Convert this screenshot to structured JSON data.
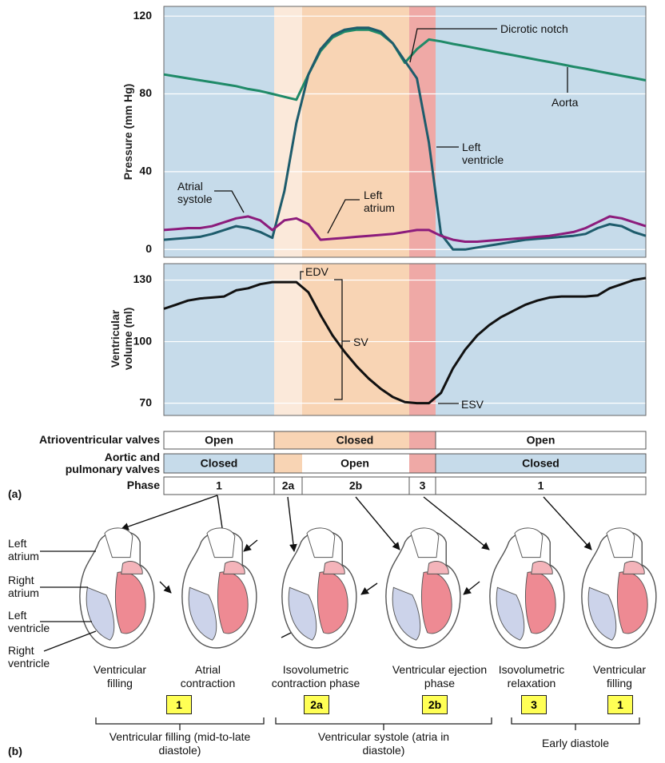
{
  "chart_data": [
    {
      "type": "line",
      "ylabel": "Pressure (mm Hg)",
      "categories": [
        null,
        null,
        null,
        null,
        null,
        null,
        null,
        null,
        null,
        null,
        null,
        null,
        null,
        null,
        null,
        null,
        null,
        null,
        null,
        null,
        null,
        null,
        null,
        null,
        null,
        null,
        null,
        null,
        null,
        null,
        null,
        null,
        null,
        null,
        null,
        null,
        null,
        null,
        null,
        null,
        null
      ],
      "series": [
        {
          "name": "Aorta",
          "color": "#1f8a68",
          "values": [
            90,
            89,
            88,
            87,
            86,
            85,
            84,
            82.5,
            81.5,
            80,
            78.5,
            77,
            90,
            102,
            109,
            112,
            113,
            113,
            111,
            106,
            96,
            103,
            108,
            107,
            105.7,
            104.6,
            103.4,
            102.2,
            101,
            99.9,
            98.7,
            97.5,
            96.4,
            95.2,
            94,
            92.9,
            91.7,
            90.5,
            89.3,
            88.2,
            87
          ]
        },
        {
          "name": "Left ventricle",
          "color": "#1e5c6c",
          "values": [
            5,
            5.5,
            6,
            6.5,
            8,
            10,
            12,
            11,
            9,
            6,
            30,
            65,
            90,
            103,
            110,
            113,
            114,
            114,
            112,
            106,
            97,
            88,
            55,
            8,
            0,
            0,
            1,
            2,
            3,
            4,
            5,
            5.5,
            6,
            6.5,
            7,
            8,
            11,
            13,
            12,
            9,
            7
          ]
        },
        {
          "name": "Left atrium",
          "color": "#8c1c7c",
          "values": [
            10,
            10.5,
            11,
            11,
            12,
            14,
            16,
            17,
            15,
            10,
            15,
            16,
            13,
            5,
            5.5,
            6,
            6.5,
            7,
            7.5,
            8,
            9,
            10,
            10,
            7,
            5,
            4,
            4,
            4.5,
            5,
            5.5,
            6,
            6.5,
            7,
            8,
            9,
            11,
            14,
            17,
            16,
            14,
            12
          ]
        }
      ],
      "annotations": [
        "Dicrotic notch",
        "Atrial systole"
      ],
      "ylim": [
        -4,
        125
      ],
      "yticks": [
        0,
        40,
        80,
        120
      ],
      "grid": true
    },
    {
      "type": "line",
      "ylabel": "Ventricular volume (ml)",
      "categories": [
        null,
        null,
        null,
        null,
        null,
        null,
        null,
        null,
        null,
        null,
        null,
        null,
        null,
        null,
        null,
        null,
        null,
        null,
        null,
        null,
        null,
        null,
        null,
        null,
        null,
        null,
        null,
        null,
        null,
        null,
        null,
        null,
        null,
        null,
        null,
        null,
        null,
        null,
        null,
        null,
        null
      ],
      "values": [
        116,
        118,
        120,
        121,
        121.5,
        122,
        125,
        126,
        128,
        129,
        129,
        129,
        124,
        113,
        103,
        95,
        88,
        82,
        77,
        73,
        70.5,
        70,
        70,
        75,
        87,
        96,
        103,
        108,
        112,
        115,
        118,
        120,
        121.5,
        122,
        122,
        122,
        122.5,
        126,
        128,
        130,
        131
      ],
      "color": "#111111",
      "annotations": [
        "EDV",
        "SV",
        "ESV"
      ],
      "ylim": [
        64,
        138
      ],
      "yticks": [
        70,
        100,
        130
      ],
      "grid": true
    }
  ],
  "valve_table": {
    "panel_label": "(a)",
    "rows": [
      {
        "label": "Atrioventricular valves",
        "cells": [
          "Open",
          "Closed",
          "Open"
        ]
      },
      {
        "label": "Aortic and pulmonary valves",
        "cells": [
          "Closed",
          "Open",
          "Closed"
        ]
      },
      {
        "label": "Phase",
        "cells": [
          "1",
          "2a",
          "2b",
          "3",
          "1"
        ]
      }
    ]
  },
  "heart_panel": {
    "panel_label": "(b)",
    "heart_labels": [
      "Left atrium",
      "Right atrium",
      "Left ventricle",
      "Right ventricle"
    ],
    "captions": [
      "Ventricular filling",
      "Atrial contraction",
      "Isovolumetric contraction phase",
      "Ventricular ejection phase",
      "Isovolumetric relaxation",
      "Ventricular filling"
    ],
    "badges": [
      "1",
      "2a",
      "2b",
      "3",
      "1"
    ],
    "groups": [
      "Ventricular filling (mid-to-late diastole)",
      "Ventricular systole (atria in diastole)",
      "Early diastole"
    ]
  }
}
